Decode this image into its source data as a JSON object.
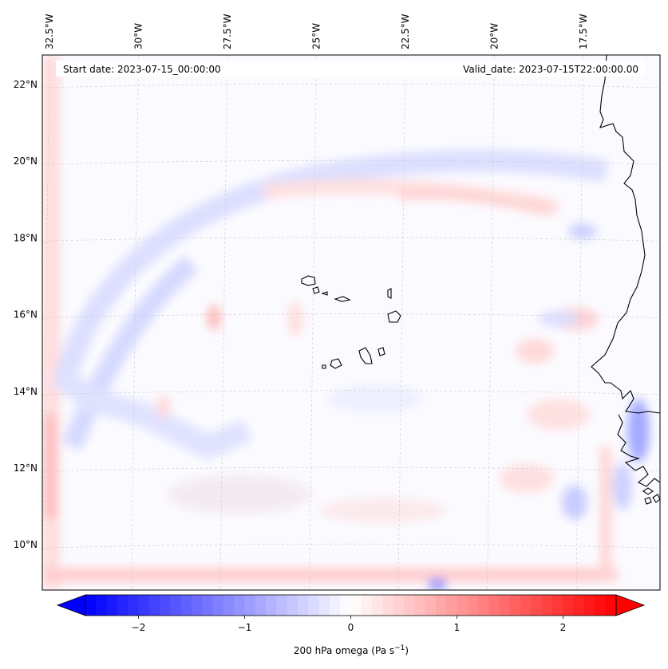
{
  "map": {
    "start_label": "Start date: 2023-07-15_00:00:00",
    "valid_label": "Valid_date: 2023-07-15T22:00:00.00",
    "lon_ticks": [
      {
        "lon": -32.5,
        "label": "32.5°W"
      },
      {
        "lon": -30,
        "label": "30°W"
      },
      {
        "lon": -27.5,
        "label": "27.5°W"
      },
      {
        "lon": -25,
        "label": "25°W"
      },
      {
        "lon": -22.5,
        "label": "22.5°W"
      },
      {
        "lon": -20,
        "label": "20°W"
      },
      {
        "lon": -17.5,
        "label": "17.5°W"
      }
    ],
    "lat_ticks": [
      {
        "lat": 22,
        "label": "22°N"
      },
      {
        "lat": 20,
        "label": "20°N"
      },
      {
        "lat": 18,
        "label": "18°N"
      },
      {
        "lat": 16,
        "label": "16°N"
      },
      {
        "lat": 14,
        "label": "14°N"
      },
      {
        "lat": 12,
        "label": "12°N"
      },
      {
        "lat": 10,
        "label": "10°N"
      }
    ],
    "field": "200 hPa omega",
    "colors": {
      "negative": "#0000ff",
      "zero": "#ffffff",
      "positive": "#ff0000",
      "coast": "#000000",
      "grid": "#b0b0b0"
    }
  },
  "colorbar": {
    "label_main": "200 hPa omega (Pa s",
    "label_exp": "−1",
    "label_close": ")",
    "range": [
      -2.5,
      2.5
    ],
    "ticks": [
      {
        "value": -2,
        "label": "−2"
      },
      {
        "value": -1,
        "label": "−1"
      },
      {
        "value": 0,
        "label": "0"
      },
      {
        "value": 1,
        "label": "1"
      },
      {
        "value": 2,
        "label": "2"
      }
    ]
  }
}
